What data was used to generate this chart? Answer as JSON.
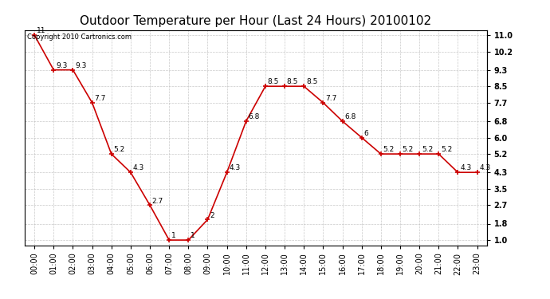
{
  "title": "Outdoor Temperature per Hour (Last 24 Hours) 20100102",
  "copyright_text": "Copyright 2010 Cartronics.com",
  "hours": [
    "00:00",
    "01:00",
    "02:00",
    "03:00",
    "04:00",
    "05:00",
    "06:00",
    "07:00",
    "08:00",
    "09:00",
    "10:00",
    "11:00",
    "12:00",
    "13:00",
    "14:00",
    "15:00",
    "16:00",
    "17:00",
    "18:00",
    "19:00",
    "20:00",
    "21:00",
    "22:00",
    "23:00"
  ],
  "temps": [
    11.0,
    9.3,
    9.3,
    7.7,
    5.2,
    4.3,
    2.7,
    1.0,
    1.0,
    2.0,
    4.3,
    6.8,
    8.5,
    8.5,
    8.5,
    7.7,
    6.8,
    6.0,
    5.2,
    5.2,
    5.2,
    5.2,
    4.3,
    4.3
  ],
  "line_color": "#cc0000",
  "marker_color": "#cc0000",
  "marker_style": "+",
  "yticks": [
    1.0,
    1.8,
    2.7,
    3.5,
    4.3,
    5.2,
    6.0,
    6.8,
    7.7,
    8.5,
    9.3,
    10.2,
    11.0
  ],
  "ylim_min": 0.75,
  "ylim_max": 11.25,
  "bg_color": "#ffffff",
  "grid_color": "#bbbbbb",
  "title_fontsize": 11,
  "label_fontsize": 7,
  "annot_fontsize": 6.5,
  "copyright_fontsize": 6
}
